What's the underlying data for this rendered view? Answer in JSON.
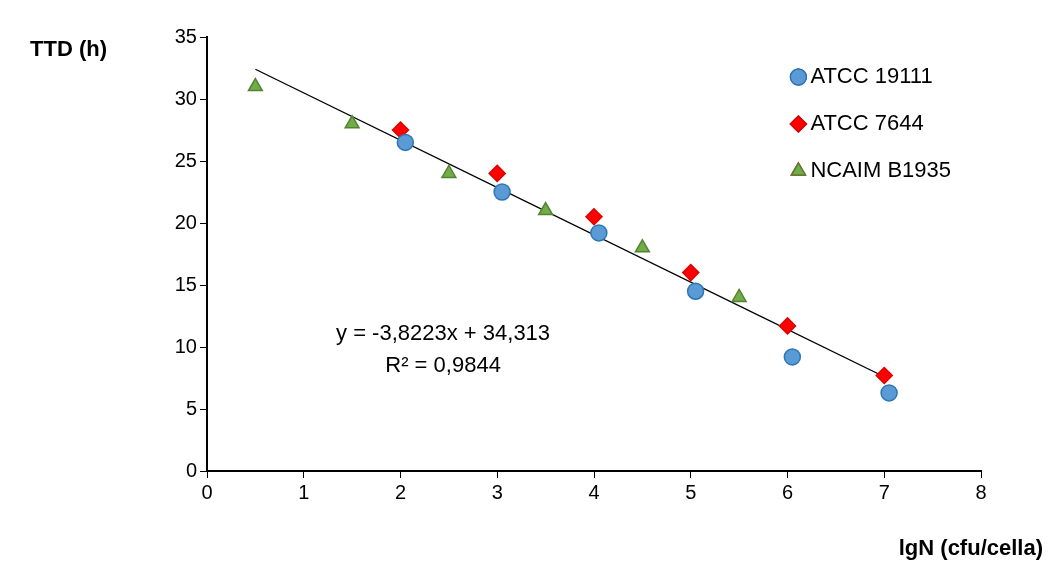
{
  "chart_data": {
    "type": "scatter",
    "xlabel": "lgN (cfu/cella)",
    "ylabel": "TTD (h)",
    "xlim": [
      0,
      8
    ],
    "xticks": [
      0,
      1,
      2,
      3,
      4,
      5,
      6,
      7,
      8
    ],
    "ylim": [
      0,
      35
    ],
    "yticks": [
      0,
      5,
      10,
      15,
      20,
      25,
      30,
      35
    ],
    "grid": false,
    "legend": "top right",
    "series": [
      {
        "name": "ATCC 19111",
        "color": "#5b9bd5",
        "marker": "circle",
        "x": [
          2.05,
          3.05,
          4.05,
          5.05,
          6.05,
          7.05
        ],
        "values": [
          26.5,
          22.5,
          19.2,
          14.5,
          9.2,
          6.3
        ]
      },
      {
        "name": "ATCC 7644",
        "color": "#ff0000",
        "marker": "diamond",
        "x": [
          2,
          3,
          4,
          5,
          6,
          7
        ],
        "values": [
          27.5,
          24,
          20.5,
          16,
          11.7,
          7.7
        ]
      },
      {
        "name": "NCAIM B1935",
        "color": "#70ad47",
        "marker": "triangle",
        "x": [
          0.5,
          1.5,
          2.5,
          3.5,
          4.5,
          5.5
        ],
        "values": [
          31,
          28,
          24,
          21,
          18,
          14
        ]
      },
      {
        "type": "line",
        "color": "#000000",
        "marker": "none",
        "x": [
          0.5,
          7
        ],
        "values": [
          32.4,
          7.6
        ]
      }
    ],
    "annotations": [
      "y = -3,8223x + 34,313",
      "R² = 0,9844"
    ]
  }
}
